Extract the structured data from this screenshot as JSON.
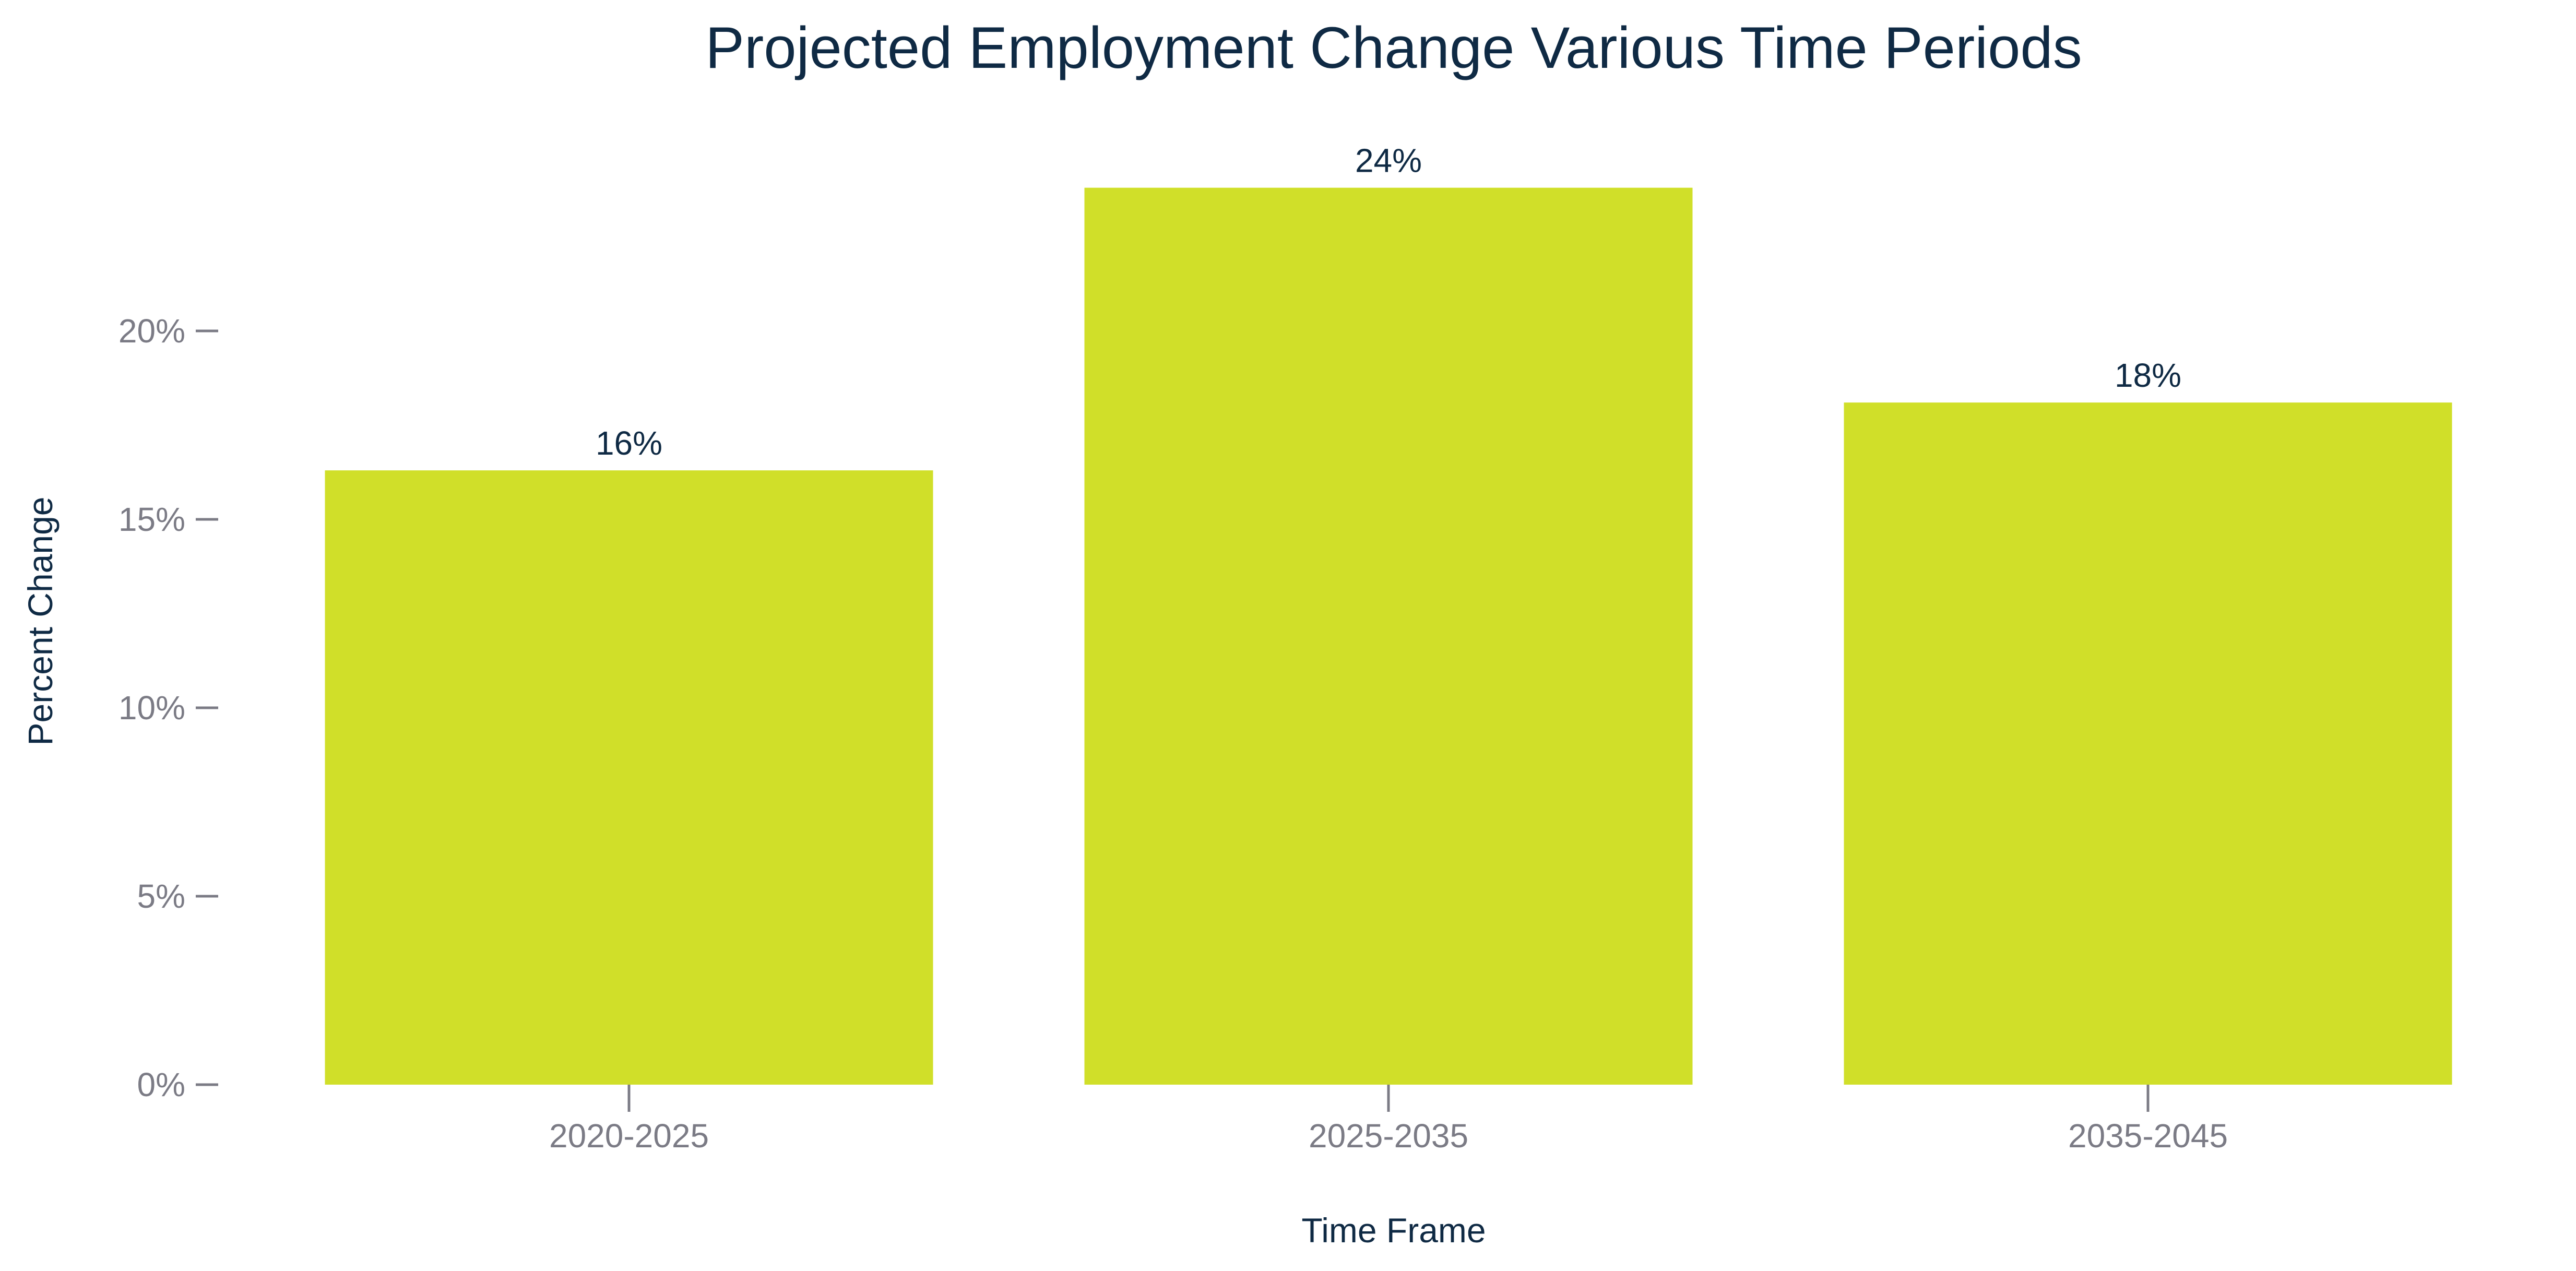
{
  "chart_data": {
    "type": "bar",
    "title": "Projected Employment Change Various Time Periods",
    "xlabel": "Time Frame",
    "ylabel": "Percent Change",
    "categories": [
      "2020-2025",
      "2025-2035",
      "2035-2045"
    ],
    "values": [
      16.3,
      23.8,
      18.1
    ],
    "data_labels": [
      "16%",
      "24%",
      "18%"
    ],
    "ylim": [
      0,
      25
    ],
    "yticks": [
      0,
      5,
      10,
      15,
      20
    ],
    "ytick_labels": [
      "0%",
      "5%",
      "10%",
      "15%",
      "20%"
    ],
    "grid": false,
    "legend": "none"
  },
  "colors": {
    "bar": "#d0df29",
    "title": "#0f2a44",
    "axis_title": "#0f2a44",
    "data_label": "#0f2a44",
    "tick_label": "#7b7b85",
    "tick_mark": "#7b7b85"
  }
}
